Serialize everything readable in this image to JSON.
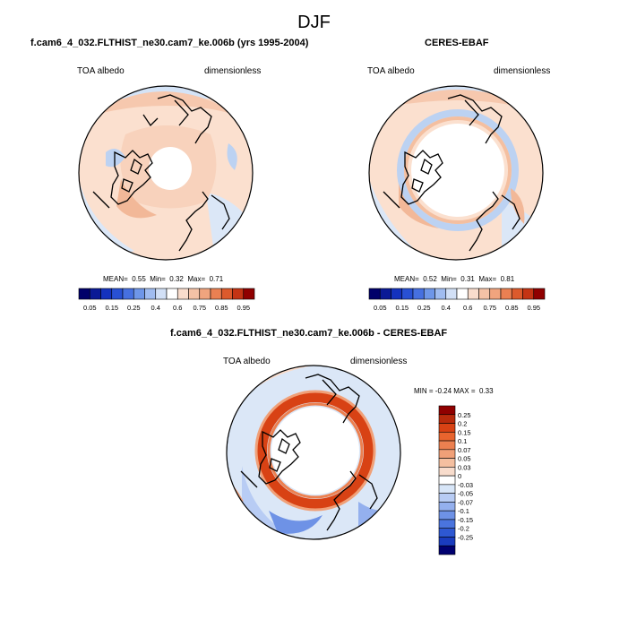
{
  "page_title": "DJF",
  "colors": {
    "coast": "#000000",
    "scale_positive": [
      "#f8dccc",
      "#f4bfa0",
      "#f0a078",
      "#ec8050",
      "#e8642e",
      "#d84214",
      "#b82a0c",
      "#900000"
    ],
    "scale_negative": [
      "#d8e6f8",
      "#b8ccf4",
      "#94b0ee",
      "#6e92e6",
      "#4a74de",
      "#2e58d2",
      "#1a3cbe",
      "#0c1e9a",
      "#000070"
    ]
  },
  "chart_data": [
    {
      "type": "heatmap",
      "projection": "polar stereographic (north)",
      "title": "f.cam6_4_032.FLTHIST_ne30.cam7_ke.006b (yrs 1995-2004)",
      "left_label": "TOA albedo",
      "right_label": "dimensionless",
      "stats": {
        "mean_label": "MEAN=",
        "mean": "0.55",
        "min_label": "Min=",
        "min": "0.32",
        "max_label": "Max=",
        "max": "0.71"
      },
      "colorbar": {
        "levels": [
          0.05,
          0.1,
          0.15,
          0.2,
          0.25,
          0.3,
          0.4,
          0.5,
          0.6,
          0.7,
          0.75,
          0.8,
          0.85,
          0.9,
          0.95
        ],
        "tick_labels": [
          "0.05",
          "0.15",
          "0.25",
          "0.4",
          "0.6",
          "0.75",
          "0.85",
          "0.95"
        ],
        "colors": [
          "#00006a",
          "#0a1a96",
          "#1432be",
          "#2850d4",
          "#4670e0",
          "#6e96e8",
          "#a0bcf0",
          "#d2e0f6",
          "#ffffff",
          "#f8dccc",
          "#f4c2a6",
          "#f0a47e",
          "#ea8052",
          "#dc5a2c",
          "#c43414",
          "#900000"
        ]
      }
    },
    {
      "type": "heatmap",
      "projection": "polar stereographic (north)",
      "title": "CERES-EBAF",
      "left_label": "TOA albedo",
      "right_label": "dimensionless",
      "stats": {
        "mean_label": "MEAN=",
        "mean": "0.52",
        "min_label": "Min=",
        "min": "0.31",
        "max_label": "Max=",
        "max": "0.81"
      },
      "colorbar": {
        "levels": [
          0.05,
          0.1,
          0.15,
          0.2,
          0.25,
          0.3,
          0.4,
          0.5,
          0.6,
          0.7,
          0.75,
          0.8,
          0.85,
          0.9,
          0.95
        ],
        "tick_labels": [
          "0.05",
          "0.15",
          "0.25",
          "0.4",
          "0.6",
          "0.75",
          "0.85",
          "0.95"
        ],
        "colors": [
          "#00006a",
          "#0a1a96",
          "#1432be",
          "#2850d4",
          "#4670e0",
          "#6e96e8",
          "#a0bcf0",
          "#d2e0f6",
          "#ffffff",
          "#f8dccc",
          "#f4c2a6",
          "#f0a47e",
          "#ea8052",
          "#dc5a2c",
          "#c43414",
          "#900000"
        ]
      }
    },
    {
      "type": "heatmap",
      "projection": "polar stereographic (north)",
      "title": "f.cam6_4_032.FLTHIST_ne30.cam7_ke.006b - CERES-EBAF",
      "left_label": "TOA albedo",
      "right_label": "dimensionless",
      "stats": {
        "min_label": "MIN =",
        "min": "-0.24",
        "max_label": "MAX =",
        "max": "0.33"
      },
      "colorbar": {
        "tick_labels": [
          "0.25",
          "0.2",
          "0.15",
          "0.1",
          "0.07",
          "0.05",
          "0.03",
          "0",
          "-0.03",
          "-0.05",
          "-0.07",
          "-0.1",
          "-0.15",
          "-0.2",
          "-0.25"
        ],
        "colors": [
          "#900000",
          "#b82a0c",
          "#d84214",
          "#e8642e",
          "#ec8050",
          "#f0a078",
          "#f4bfa0",
          "#f8dccc",
          "#ffffff",
          "#d8e6f8",
          "#b8ccf4",
          "#94b0ee",
          "#6e92e6",
          "#4a74de",
          "#2e58d2",
          "#1a3cbe",
          "#000070"
        ]
      }
    }
  ]
}
